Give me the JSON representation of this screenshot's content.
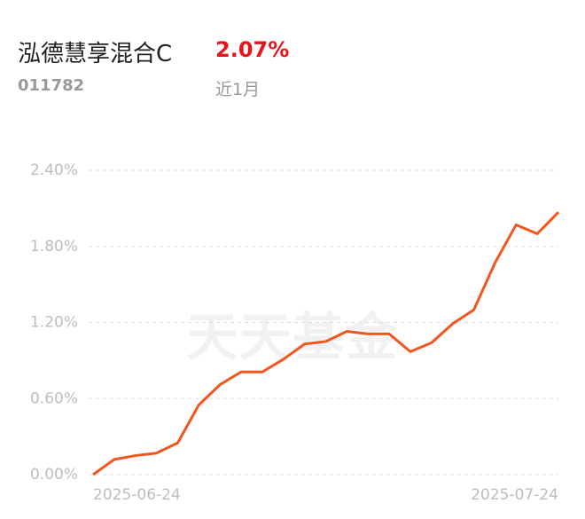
{
  "header": {
    "title": "泓德慧享混合C",
    "return": "2.07%",
    "code": "011782",
    "period": "近1月"
  },
  "chart_data": {
    "type": "line",
    "watermark": "天天基金",
    "categories": [
      "2025-06-24",
      null,
      null,
      null,
      null,
      null,
      null,
      null,
      null,
      null,
      null,
      null,
      null,
      null,
      null,
      null,
      null,
      null,
      null,
      null,
      null,
      null,
      "2025-07-24"
    ],
    "series": [
      {
        "color": "#f0561e",
        "values": [
          0,
          0.12,
          0.15,
          0.17,
          0.25,
          0.55,
          0.71,
          0.81,
          0.81,
          0.91,
          1.03,
          1.05,
          1.13,
          1.11,
          1.11,
          0.97,
          1.04,
          1.19,
          1.3,
          1.67,
          1.97,
          1.9,
          2.07
        ]
      }
    ],
    "ylim": [
      0,
      2.4
    ],
    "yticks": [
      {
        "value": 0,
        "label": "0.00%"
      },
      {
        "value": 0.6,
        "label": "0.60%"
      },
      {
        "value": 1.2,
        "label": "1.20%"
      },
      {
        "value": 1.8,
        "label": "1.80%"
      },
      {
        "value": 2.4,
        "label": "2.40%"
      }
    ],
    "grid": true
  }
}
